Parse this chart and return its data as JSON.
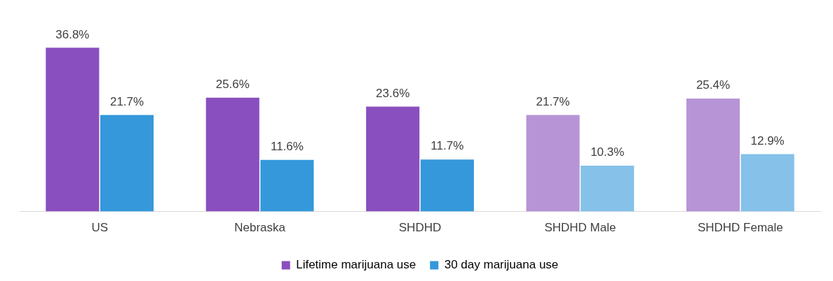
{
  "chart_data": {
    "type": "bar",
    "categories": [
      "US",
      "Nebraska",
      "SHDHD",
      "SHDHD Male",
      "SHDHD Female"
    ],
    "series": [
      {
        "name": "Lifetime marijuana use",
        "color": "#8a4fbe",
        "colors": [
          "#8a4fbe",
          "#8a4fbe",
          "#8a4fbe",
          "#b794d6",
          "#b794d6"
        ],
        "values": [
          36.8,
          25.6,
          23.6,
          21.7,
          25.4
        ],
        "value_labels": [
          "36.8%",
          "25.6%",
          "23.6%",
          "21.7%",
          "25.4%"
        ]
      },
      {
        "name": "30 day marijuana use",
        "color": "#3498db",
        "colors": [
          "#3498db",
          "#3498db",
          "#3498db",
          "#85c1e9",
          "#85c1e9"
        ],
        "values": [
          21.7,
          11.6,
          11.7,
          10.3,
          12.9
        ],
        "value_labels": [
          "21.7%",
          "11.6%",
          "11.7%",
          "10.3%",
          "12.9%"
        ]
      }
    ],
    "legend": "bottom"
  }
}
